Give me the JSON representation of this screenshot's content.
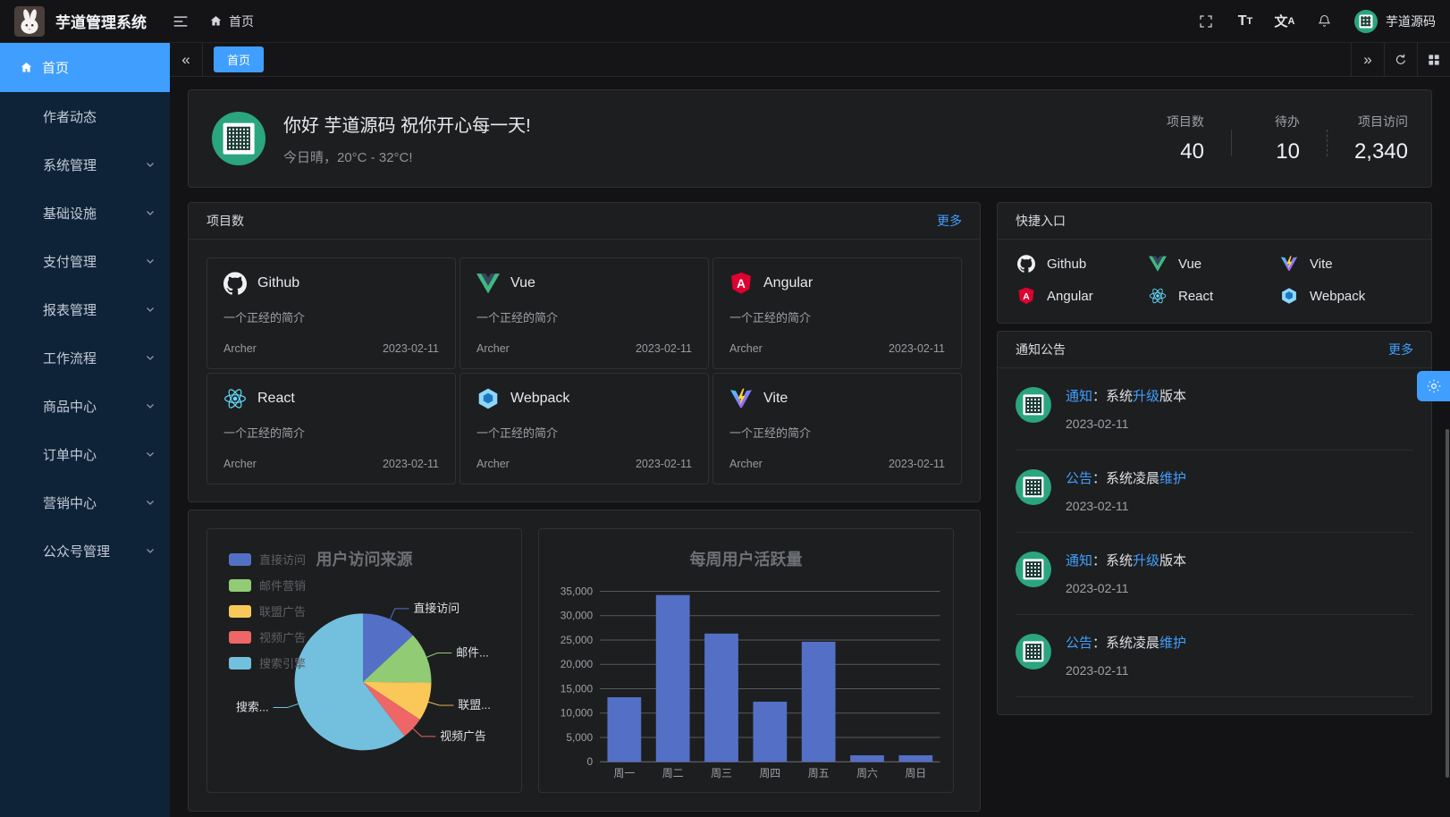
{
  "app": {
    "title": "芋道管理系统",
    "user_name": "芋道源码"
  },
  "topbar": {
    "breadcrumb_home": "首页"
  },
  "icons": {
    "collapse": "«",
    "expand": "»",
    "t_big": "T",
    "t_small": "T",
    "locale_cn": "文",
    "locale_a": "A"
  },
  "sidebar": {
    "items": [
      {
        "key": "home",
        "label": "首页",
        "icon": "home",
        "active": true,
        "expandable": false
      },
      {
        "key": "author",
        "label": "作者动态",
        "expandable": false
      },
      {
        "key": "system",
        "label": "系统管理",
        "expandable": true
      },
      {
        "key": "infra",
        "label": "基础设施",
        "expandable": true
      },
      {
        "key": "pay",
        "label": "支付管理",
        "expandable": true
      },
      {
        "key": "report",
        "label": "报表管理",
        "expandable": true
      },
      {
        "key": "workflow",
        "label": "工作流程",
        "expandable": true
      },
      {
        "key": "product",
        "label": "商品中心",
        "expandable": true
      },
      {
        "key": "order",
        "label": "订单中心",
        "expandable": true
      },
      {
        "key": "marketing",
        "label": "营销中心",
        "expandable": true
      },
      {
        "key": "mp",
        "label": "公众号管理",
        "expandable": true
      }
    ]
  },
  "tabs": {
    "items": [
      {
        "label": "首页",
        "active": true
      }
    ]
  },
  "welcome": {
    "greeting": "你好 芋道源码 祝你开心每一天!",
    "weather": "今日晴，20°C - 32°C!",
    "stats": [
      {
        "label": "项目数",
        "value": "40"
      },
      {
        "label": "待办",
        "value": "10"
      },
      {
        "label": "项目访问",
        "value": "2,340"
      }
    ]
  },
  "projects": {
    "title": "项目数",
    "more_label": "更多",
    "item_desc": "一个正经的简介",
    "item_author": "Archer",
    "item_date": "2023-02-11",
    "items": [
      {
        "key": "github",
        "name": "Github"
      },
      {
        "key": "vue",
        "name": "Vue"
      },
      {
        "key": "angular",
        "name": "Angular"
      },
      {
        "key": "react",
        "name": "React"
      },
      {
        "key": "webpack",
        "name": "Webpack"
      },
      {
        "key": "vite",
        "name": "Vite"
      }
    ]
  },
  "shortcuts": {
    "title": "快捷入口",
    "items": [
      {
        "key": "github",
        "name": "Github"
      },
      {
        "key": "vue",
        "name": "Vue"
      },
      {
        "key": "vite",
        "name": "Vite"
      },
      {
        "key": "angular",
        "name": "Angular"
      },
      {
        "key": "react",
        "name": "React"
      },
      {
        "key": "webpack",
        "name": "Webpack"
      }
    ]
  },
  "notices": {
    "title": "通知公告",
    "more_label": "更多",
    "items": [
      {
        "parts": [
          {
            "t": "通知",
            "blue": true
          },
          {
            "t": "：系统"
          },
          {
            "t": "升级",
            "blue": true
          },
          {
            "t": "版本"
          }
        ],
        "date": "2023-02-11"
      },
      {
        "parts": [
          {
            "t": "公告",
            "blue": true
          },
          {
            "t": "：系统凌晨"
          },
          {
            "t": "维护",
            "blue": true
          }
        ],
        "date": "2023-02-11"
      },
      {
        "parts": [
          {
            "t": "通知",
            "blue": true
          },
          {
            "t": "：系统"
          },
          {
            "t": "升级",
            "blue": true
          },
          {
            "t": "版本"
          }
        ],
        "date": "2023-02-11"
      },
      {
        "parts": [
          {
            "t": "公告",
            "blue": true
          },
          {
            "t": "：系统凌晨"
          },
          {
            "t": "维护",
            "blue": true
          }
        ],
        "date": "2023-02-11"
      }
    ]
  },
  "chart_data": [
    {
      "type": "pie",
      "title": "用户访问来源",
      "legend_position": "left",
      "items": [
        {
          "name": "直接访问",
          "label": "直接访问",
          "value": 335,
          "color": "#5470c6"
        },
        {
          "name": "邮件营销",
          "label": "邮件...",
          "value": 310,
          "color": "#91cc75"
        },
        {
          "name": "联盟广告",
          "label": "联盟...",
          "value": 234,
          "color": "#fac858"
        },
        {
          "name": "视频广告",
          "label": "视频广告",
          "value": 135,
          "color": "#ee6666"
        },
        {
          "name": "搜索引擎",
          "label": "搜索...",
          "value": 1548,
          "color": "#73c0de"
        }
      ]
    },
    {
      "type": "bar",
      "title": "每周用户活跃量",
      "categories": [
        "周一",
        "周二",
        "周三",
        "周四",
        "周五",
        "周六",
        "周日"
      ],
      "values": [
        13253,
        34235,
        26321,
        12340,
        24643,
        1322,
        1324
      ],
      "ylim": [
        0,
        35000
      ],
      "ytick_step": 5000,
      "bar_color": "#5470c6",
      "grid": true
    }
  ]
}
